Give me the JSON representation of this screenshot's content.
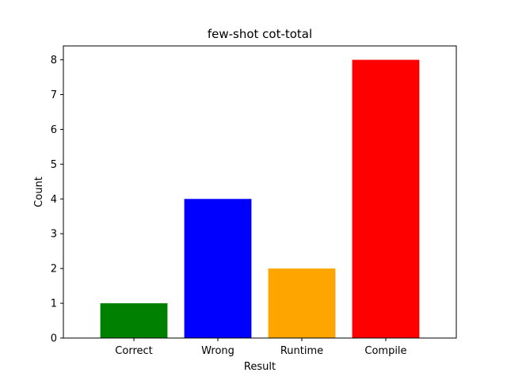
{
  "chart_data": {
    "type": "bar",
    "title": "few-shot cot-total",
    "xlabel": "Result",
    "ylabel": "Count",
    "categories": [
      "Correct",
      "Wrong",
      "Runtime",
      "Compile"
    ],
    "values": [
      1,
      4,
      2,
      8
    ],
    "colors": [
      "#008000",
      "#0000ff",
      "#ffa500",
      "#ff0000"
    ],
    "ylim": [
      0,
      8.4
    ],
    "yticks": [
      0,
      1,
      2,
      3,
      4,
      5,
      6,
      7,
      8
    ],
    "grid": false,
    "legend": "none"
  }
}
